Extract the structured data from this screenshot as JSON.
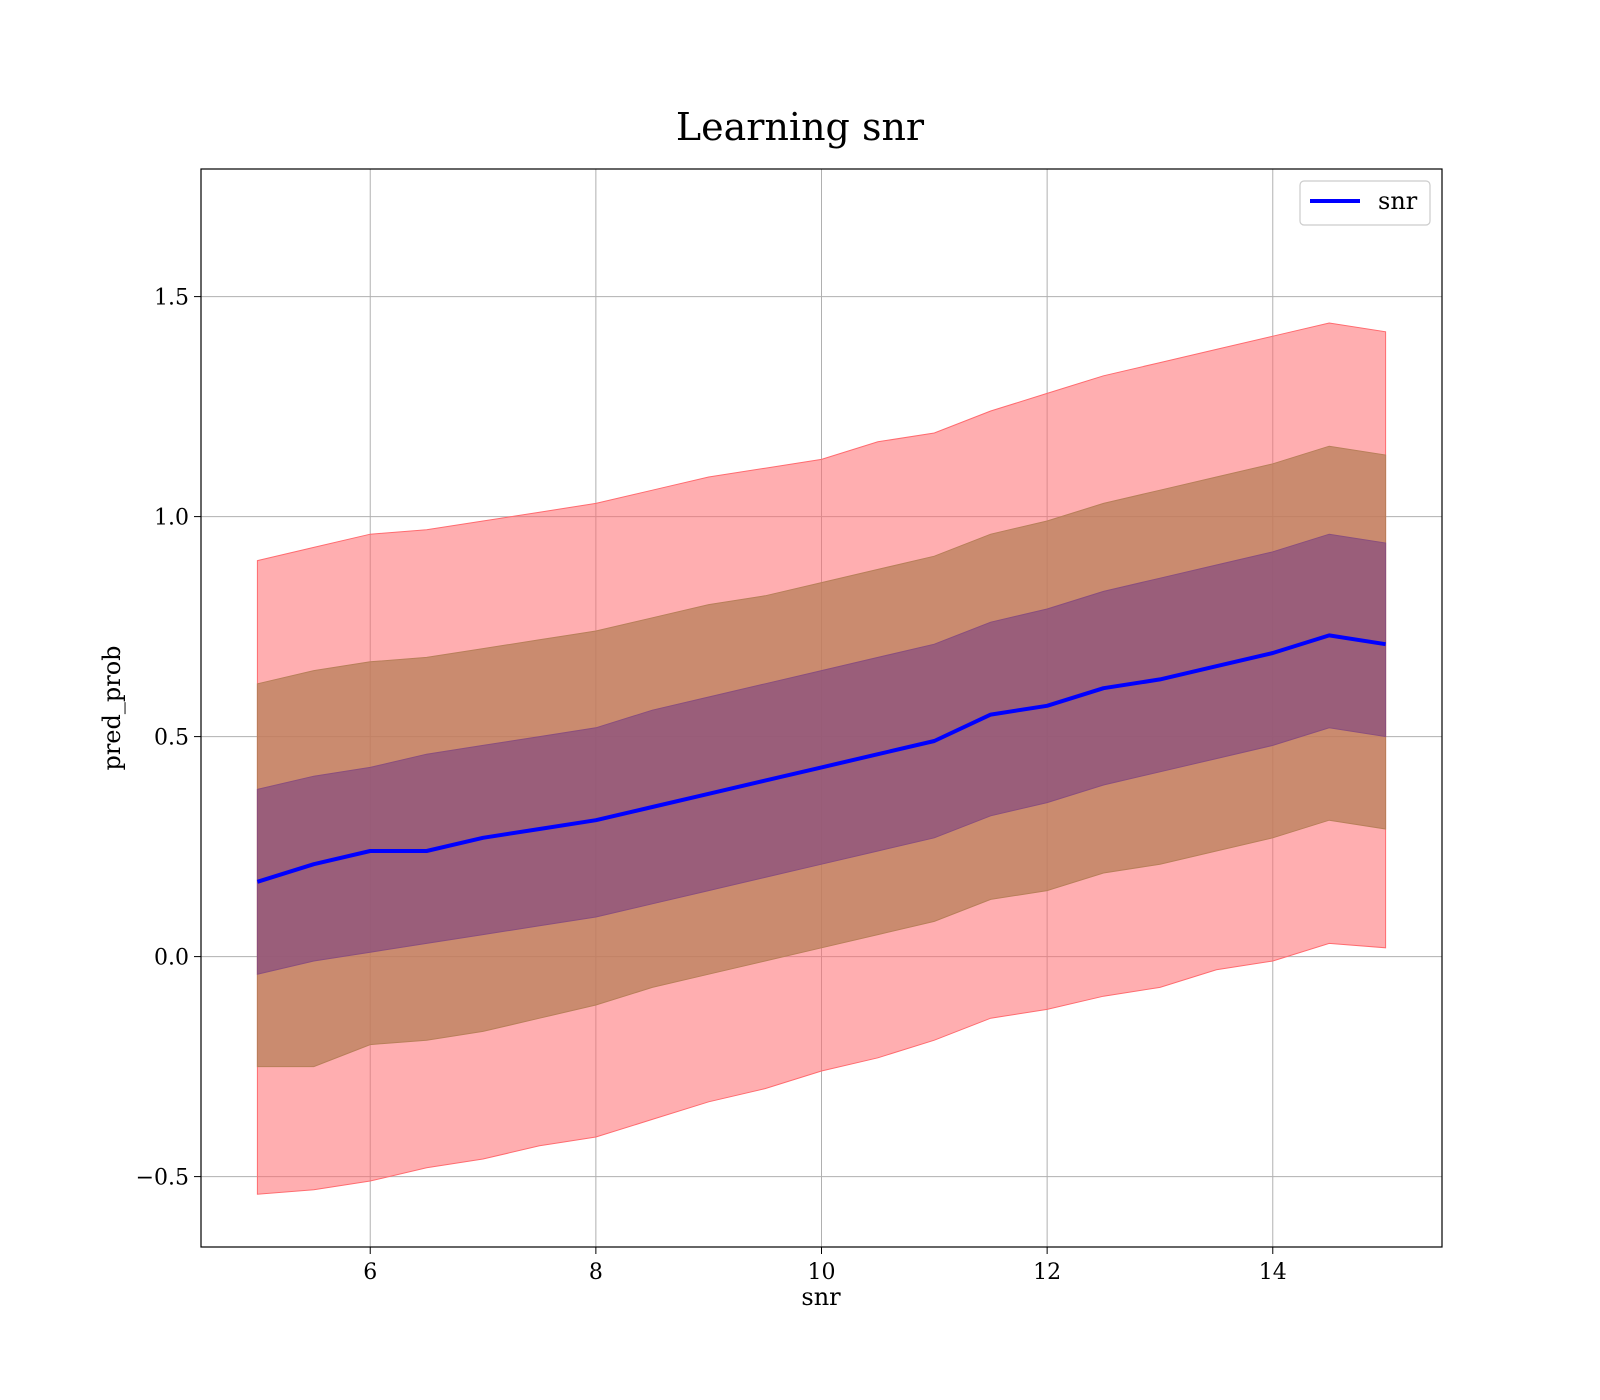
{
  "chart_data": {
    "type": "area",
    "title": "Learning snr",
    "xlabel": "snr",
    "ylabel": "pred_prob",
    "xlim": [
      4.5,
      15.5
    ],
    "ylim": [
      -0.66,
      1.79
    ],
    "x_ticks": [
      6,
      8,
      10,
      12,
      14
    ],
    "x_tick_labels": [
      "6",
      "8",
      "10",
      "12",
      "14"
    ],
    "y_ticks": [
      -0.5,
      0.0,
      0.5,
      1.0,
      1.5
    ],
    "y_tick_labels": [
      "−0.5",
      "0.0",
      "0.5",
      "1.0",
      "1.5"
    ],
    "grid": true,
    "legend": {
      "position": "top-right",
      "entries": [
        "snr"
      ]
    },
    "colors": {
      "line": "#0000ff",
      "band_3sd": "#ff6b6f",
      "band_2sd": "#b87f5a",
      "band_1sd": "#8a4f7d"
    },
    "x": [
      5.0,
      5.5,
      6.0,
      6.5,
      7.0,
      7.5,
      8.0,
      8.5,
      9.0,
      9.5,
      10.0,
      10.5,
      11.0,
      11.5,
      12.0,
      12.5,
      13.0,
      13.5,
      14.0,
      14.5,
      15.0
    ],
    "series": [
      {
        "name": "snr",
        "role": "mean",
        "values": [
          0.17,
          0.21,
          0.24,
          0.24,
          0.27,
          0.29,
          0.31,
          0.34,
          0.37,
          0.4,
          0.43,
          0.46,
          0.49,
          0.55,
          0.57,
          0.61,
          0.63,
          0.66,
          0.69,
          0.73,
          0.71
        ]
      }
    ],
    "bands": [
      {
        "level": "3sd",
        "lower": [
          -0.54,
          -0.53,
          -0.51,
          -0.48,
          -0.46,
          -0.43,
          -0.41,
          -0.37,
          -0.33,
          -0.3,
          -0.26,
          -0.23,
          -0.19,
          -0.14,
          -0.12,
          -0.09,
          -0.07,
          -0.03,
          -0.01,
          0.03,
          0.02
        ],
        "upper": [
          0.9,
          0.93,
          0.96,
          0.97,
          0.99,
          1.01,
          1.03,
          1.06,
          1.09,
          1.11,
          1.13,
          1.17,
          1.19,
          1.24,
          1.28,
          1.32,
          1.35,
          1.38,
          1.41,
          1.44,
          1.42
        ]
      },
      {
        "level": "2sd",
        "lower": [
          -0.25,
          -0.25,
          -0.2,
          -0.19,
          -0.17,
          -0.14,
          -0.11,
          -0.07,
          -0.04,
          -0.01,
          0.02,
          0.05,
          0.08,
          0.13,
          0.15,
          0.19,
          0.21,
          0.24,
          0.27,
          0.31,
          0.29
        ],
        "upper": [
          0.62,
          0.65,
          0.67,
          0.68,
          0.7,
          0.72,
          0.74,
          0.77,
          0.8,
          0.82,
          0.85,
          0.88,
          0.91,
          0.96,
          0.99,
          1.03,
          1.06,
          1.09,
          1.12,
          1.16,
          1.14
        ]
      },
      {
        "level": "1sd",
        "lower": [
          -0.04,
          -0.01,
          0.01,
          0.03,
          0.05,
          0.07,
          0.09,
          0.12,
          0.15,
          0.18,
          0.21,
          0.24,
          0.27,
          0.32,
          0.35,
          0.39,
          0.42,
          0.45,
          0.48,
          0.52,
          0.5
        ],
        "upper": [
          0.38,
          0.41,
          0.43,
          0.46,
          0.48,
          0.5,
          0.52,
          0.56,
          0.59,
          0.62,
          0.65,
          0.68,
          0.71,
          0.76,
          0.79,
          0.83,
          0.86,
          0.89,
          0.92,
          0.96,
          0.94
        ]
      }
    ]
  }
}
